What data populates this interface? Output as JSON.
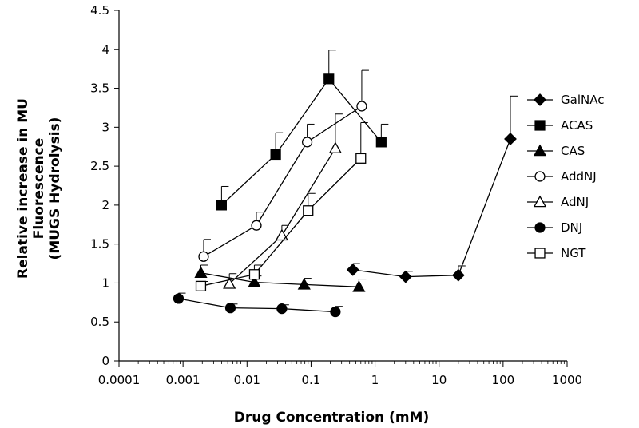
{
  "chart_data": {
    "type": "scatter",
    "title": "",
    "xlabel": "Drug Concentration (mM)",
    "ylabel_lines": [
      "Relative increase in MU",
      "Fluorescence",
      "(MUGS Hydrolysis)"
    ],
    "x_scale": "log",
    "xlim": [
      0.0001,
      1000
    ],
    "ylim": [
      0,
      4.5
    ],
    "grid": false,
    "legend_position": "right",
    "x_tick_labels": [
      "0.0001",
      "0.001",
      "0.01",
      "0.1",
      "1",
      "10",
      "100",
      "1000"
    ],
    "y_tick_labels": [
      "0",
      "0.5",
      "1",
      "1.5",
      "2",
      "2.5",
      "3",
      "3.5",
      "4",
      "4.5"
    ],
    "series": [
      {
        "name": "GalNAc",
        "marker": "diamond-filled",
        "x": [
          0.45,
          3,
          20,
          130
        ],
        "y": [
          1.17,
          1.08,
          1.1,
          2.85
        ],
        "err": [
          0.08,
          0.07,
          0.12,
          0.55
        ]
      },
      {
        "name": "ACAS",
        "marker": "square-filled",
        "x": [
          0.004,
          0.028,
          0.19,
          1.25
        ],
        "y": [
          2.0,
          2.65,
          3.62,
          2.81
        ],
        "err": [
          0.24,
          0.28,
          0.37,
          0.23
        ]
      },
      {
        "name": "CAS",
        "marker": "triangle-filled",
        "x": [
          0.0019,
          0.013,
          0.078,
          0.56
        ],
        "y": [
          1.13,
          1.01,
          0.98,
          0.95
        ],
        "err": [
          0.1,
          0.08,
          0.08,
          0.1
        ]
      },
      {
        "name": "AddNJ",
        "marker": "circle-open",
        "x": [
          0.0021,
          0.014,
          0.087,
          0.62
        ],
        "y": [
          1.34,
          1.74,
          2.81,
          3.27
        ],
        "err": [
          0.22,
          0.17,
          0.23,
          0.46
        ]
      },
      {
        "name": "AdNJ",
        "marker": "triangle-open",
        "x": [
          0.0053,
          0.035,
          0.24
        ],
        "y": [
          0.99,
          1.61,
          2.73
        ],
        "err": [
          0.13,
          0.13,
          0.44
        ]
      },
      {
        "name": "DNJ",
        "marker": "circle-filled",
        "x": [
          0.00085,
          0.0055,
          0.035,
          0.24
        ],
        "y": [
          0.8,
          0.68,
          0.67,
          0.63
        ],
        "err": [
          0.07,
          0.05,
          0.05,
          0.07
        ]
      },
      {
        "name": "NGT",
        "marker": "square-open",
        "x": [
          0.0019,
          0.013,
          0.09,
          0.6
        ],
        "y": [
          0.96,
          1.11,
          1.93,
          2.6
        ],
        "err": [
          0.06,
          0.12,
          0.22,
          0.46
        ]
      }
    ]
  }
}
